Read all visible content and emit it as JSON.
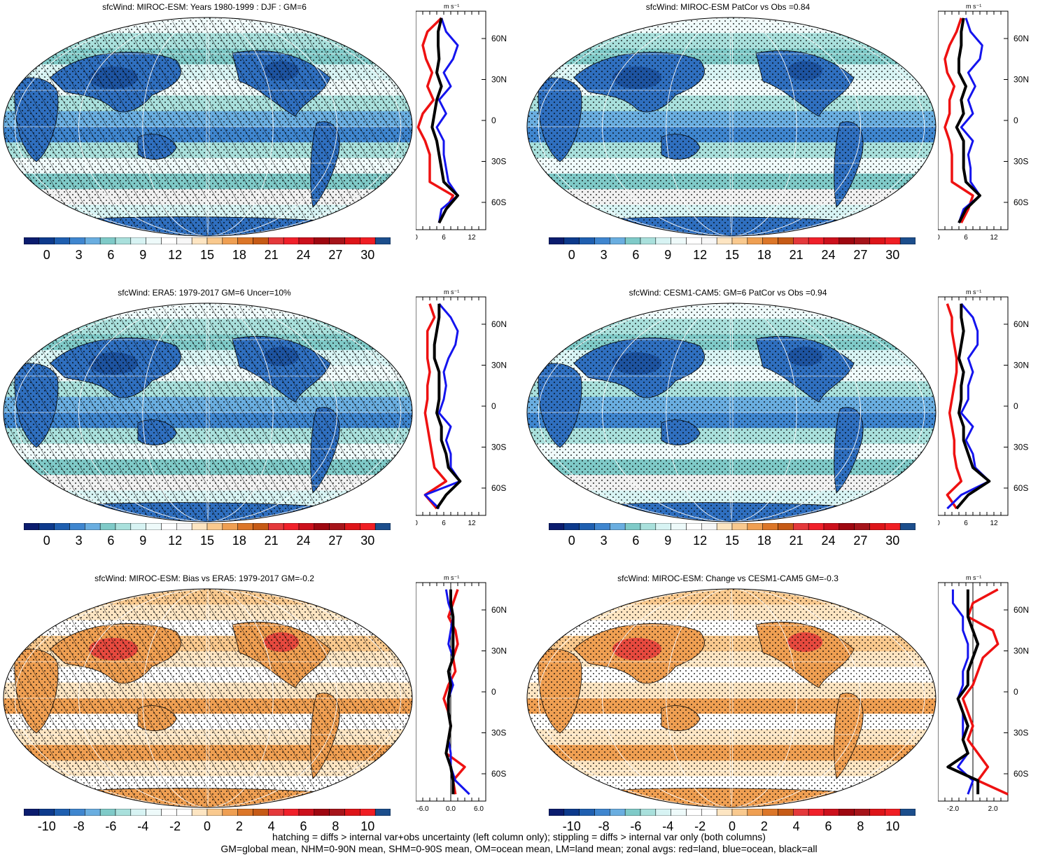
{
  "colors": {
    "abs_scale": [
      "#0b1c6e",
      "#0d3a8c",
      "#1f5fb0",
      "#3f86cf",
      "#6aaee0",
      "#7fcac8",
      "#a9e0dc",
      "#d7f3f3",
      "#eefafa",
      "#ffffff",
      "#f7f7f7",
      "#fde5c2",
      "#f9c98e",
      "#ef9f52",
      "#dc7628",
      "#c65a16",
      "#e4393b",
      "#f0202a",
      "#cc101c",
      "#9e0710",
      "#a6141a",
      "#dd1419",
      "#f01e24",
      "#1c4e8c"
    ],
    "diff_scale": [
      "#0b1c6e",
      "#0d3a8c",
      "#1f5fb0",
      "#3f86cf",
      "#6aaee0",
      "#7fcac8",
      "#a9e0dc",
      "#d7f3f3",
      "#eefafa",
      "#ffffff",
      "#ffffff",
      "#fde5c2",
      "#f9c98e",
      "#ef9f52",
      "#dc7628",
      "#c65a16",
      "#e4393b",
      "#f0202a",
      "#cc101c",
      "#9e0710",
      "#a6141a",
      "#dd1419",
      "#f01e24",
      "#1c4e8c"
    ],
    "land_line": "#ee1111",
    "ocean_line": "#1414ee",
    "all_line": "#000000"
  },
  "panels": [
    {
      "title": "sfcWind: MIROC-ESM: Years 1980-1999 : DJF : GM=6",
      "kind": "abs",
      "hatching": true,
      "cbar_labels": [
        "0",
        "3",
        "6",
        "9",
        "12",
        "15",
        "18",
        "21",
        "24",
        "27",
        "30"
      ],
      "zonal": {
        "xlim": [
          0,
          15
        ],
        "xticks": [
          "0",
          "6",
          "12"
        ],
        "xtick_values": [
          0,
          6,
          12
        ]
      }
    },
    {
      "title": "sfcWind: MIROC-ESM PatCor vs Obs =0.84",
      "kind": "abs",
      "hatching": false,
      "cbar_labels": [
        "0",
        "3",
        "6",
        "9",
        "12",
        "15",
        "18",
        "21",
        "24",
        "27",
        "30"
      ],
      "zonal": {
        "xlim": [
          0,
          15
        ],
        "xticks": [
          "0",
          "6",
          "12"
        ],
        "xtick_values": [
          0,
          6,
          12
        ]
      }
    },
    {
      "title": "sfcWind: ERA5: 1979-2017 GM=6 Uncer=10%",
      "kind": "abs",
      "hatching": true,
      "cbar_labels": [
        "0",
        "3",
        "6",
        "9",
        "12",
        "15",
        "18",
        "21",
        "24",
        "27",
        "30"
      ],
      "zonal": {
        "xlim": [
          0,
          15
        ],
        "xticks": [
          "0",
          "6",
          "12"
        ],
        "xtick_values": [
          0,
          6,
          12
        ]
      }
    },
    {
      "title": "sfcWind: CESM1-CAM5: GM=6 PatCor vs Obs =0.94",
      "kind": "abs",
      "hatching": false,
      "cbar_labels": [
        "0",
        "3",
        "6",
        "9",
        "12",
        "15",
        "18",
        "21",
        "24",
        "27",
        "30"
      ],
      "zonal": {
        "xlim": [
          0,
          15
        ],
        "xticks": [
          "0",
          "6",
          "12"
        ],
        "xtick_values": [
          0,
          6,
          12
        ]
      }
    },
    {
      "title": "sfcWind: MIROC-ESM: Bias vs ERA5: 1979-2017 GM=-0.2",
      "kind": "diff",
      "hatching": true,
      "cbar_labels": [
        "-10",
        "-8",
        "-6",
        "-4",
        "-2",
        "0",
        "2",
        "4",
        "6",
        "8",
        "10"
      ],
      "zonal": {
        "xlim": [
          -7.5,
          7.5
        ],
        "xticks": [
          "-6.0",
          "0.0",
          "6.0"
        ],
        "xtick_values": [
          -6,
          0,
          6
        ]
      }
    },
    {
      "title": "sfcWind: MIROC-ESM: Change vs CESM1-CAM5 GM=-0.3",
      "kind": "diff",
      "hatching": false,
      "cbar_labels": [
        "-10",
        "-8",
        "-6",
        "-4",
        "-2",
        "0",
        "2",
        "4",
        "6",
        "8",
        "10"
      ],
      "zonal": {
        "xlim": [
          -3.5,
          3.5
        ],
        "xticks": [
          "-2.0",
          "2.0"
        ],
        "xtick_values": [
          -2,
          2
        ]
      }
    }
  ],
  "zonal_unit": "m s⁻¹",
  "lat_labels": [
    "60N",
    "30N",
    "0",
    "30S",
    "60S"
  ],
  "chart_data": [
    {
      "type": "line",
      "title": "sfcWind: MIROC-ESM: Years 1980-1999 : DJF : GM=6",
      "ylabel": "latitude",
      "ylim": [
        -80,
        80
      ],
      "x": [
        75,
        65,
        55,
        45,
        35,
        25,
        15,
        5,
        -5,
        -15,
        -25,
        -35,
        -45,
        -55,
        -65,
        -75
      ],
      "series": [
        {
          "values": [
            5.5,
            2.5,
            1.5,
            2.2,
            3.5,
            2.5,
            3.8,
            1.5,
            0.5,
            2,
            3,
            3,
            3,
            8,
            6.5,
            5
          ]
        },
        {
          "values": [
            5.5,
            6.5,
            9.0,
            8.0,
            6.0,
            7.5,
            5.0,
            6.5,
            4.5,
            6.0,
            6.0,
            6.5,
            7,
            9,
            5.5,
            5
          ]
        },
        {
          "values": [
            5.5,
            4.8,
            4.8,
            5.0,
            4.5,
            5.5,
            4.5,
            4.0,
            3.5,
            4.5,
            5.0,
            5.5,
            6,
            9,
            6.5,
            5
          ]
        }
      ]
    },
    {
      "type": "line",
      "title": "sfcWind: MIROC-ESM PatCor vs Obs =0.84",
      "ylabel": "latitude",
      "ylim": [
        -80,
        80
      ],
      "x": [
        75,
        65,
        55,
        45,
        35,
        25,
        15,
        5,
        -5,
        -15,
        -25,
        -35,
        -45,
        -55,
        -65,
        -75
      ],
      "series": [
        {
          "values": [
            5,
            4,
            2.5,
            1.5,
            2.0,
            3.5,
            2.5,
            2.5,
            1.5,
            2.5,
            3,
            3,
            3,
            7.5,
            6.5,
            5
          ]
        },
        {
          "values": [
            6,
            7,
            9.5,
            9,
            6.5,
            8,
            6.5,
            7.5,
            5,
            7.5,
            6.5,
            7,
            7,
            9,
            5.5,
            4.5
          ]
        },
        {
          "values": [
            5.5,
            5,
            5,
            4.5,
            4.5,
            6,
            5,
            5.5,
            4,
            5.5,
            5.5,
            5.5,
            6,
            9,
            6,
            4.5
          ]
        }
      ]
    },
    {
      "type": "line",
      "title": "sfcWind: ERA5: 1979-2017 GM=6 Uncer=10%",
      "ylabel": "latitude",
      "ylim": [
        -80,
        80
      ],
      "x": [
        75,
        65,
        55,
        45,
        35,
        25,
        15,
        5,
        -5,
        -15,
        -25,
        -35,
        -45,
        -55,
        -65,
        -75
      ],
      "series": [
        {
          "values": [
            3,
            4,
            2.5,
            2.5,
            2.5,
            3,
            2.5,
            2.5,
            2.0,
            2.5,
            3,
            3.5,
            4,
            6.5,
            2,
            4.5
          ]
        },
        {
          "values": [
            5,
            7.5,
            9,
            8.5,
            7,
            6,
            6.5,
            6,
            5,
            7.5,
            6.5,
            7.5,
            7.5,
            9.5,
            2,
            5
          ]
        },
        {
          "values": [
            5,
            5,
            4.5,
            4,
            4,
            5,
            5,
            5,
            4.5,
            5.5,
            5.5,
            6.5,
            7,
            9.5,
            6.5,
            4.5
          ]
        }
      ]
    },
    {
      "type": "line",
      "title": "sfcWind: CESM1-CAM5: GM=6 PatCor vs Obs =0.94",
      "ylabel": "latitude",
      "ylim": [
        -80,
        80
      ],
      "x": [
        75,
        65,
        55,
        45,
        35,
        25,
        15,
        5,
        -5,
        -15,
        -25,
        -35,
        -45,
        -55,
        -65,
        -75
      ],
      "series": [
        {
          "values": [
            2,
            3,
            3,
            3.5,
            4,
            4,
            3.5,
            3,
            2.5,
            3,
            3.5,
            3.5,
            4,
            5,
            2,
            4
          ]
        },
        {
          "values": [
            5,
            7.5,
            8.5,
            8.5,
            6.5,
            7.5,
            6.5,
            6.5,
            5,
            7.5,
            6,
            7.5,
            8,
            11,
            5,
            2
          ]
        },
        {
          "values": [
            5,
            5,
            5.5,
            5,
            4.5,
            5.5,
            5,
            5,
            4.5,
            5.5,
            5.5,
            6.5,
            7.5,
            11,
            6.5,
            4
          ]
        }
      ]
    },
    {
      "type": "line",
      "title": "sfcWind: MIROC-ESM: Bias vs ERA5: 1979-2017 GM=-0.2",
      "ylabel": "latitude",
      "ylim": [
        -80,
        80
      ],
      "x": [
        75,
        65,
        55,
        45,
        35,
        25,
        15,
        5,
        -5,
        -15,
        -25,
        -35,
        -45,
        -55,
        -65,
        -75
      ],
      "series": [
        {
          "values": [
            1.5,
            0.5,
            -0.5,
            1.0,
            1.5,
            0.5,
            1.0,
            -0.5,
            -1.5,
            -0.5,
            0,
            -0.5,
            -1,
            3,
            0.5,
            1
          ]
        },
        {
          "values": [
            -1,
            -0.5,
            0.5,
            0,
            -0.5,
            0.5,
            -0.5,
            0.5,
            -0.5,
            -0.5,
            0,
            -0.5,
            0,
            0,
            1,
            4
          ]
        },
        {
          "values": [
            0,
            0,
            0.5,
            0.5,
            0.5,
            0.5,
            -0.5,
            0,
            -0.5,
            -0.5,
            0,
            -0.5,
            -1,
            0,
            0.5,
            0.5
          ]
        }
      ]
    },
    {
      "type": "line",
      "title": "sfcWind: MIROC-ESM: Change vs CESM1-CAM5 GM=-0.3",
      "ylabel": "latitude",
      "ylim": [
        -80,
        80
      ],
      "x": [
        75,
        65,
        55,
        45,
        35,
        25,
        15,
        5,
        -5,
        -15,
        -25,
        -35,
        -45,
        -55,
        -65,
        -75
      ],
      "series": [
        {
          "values": [
            2.5,
            0,
            -0.5,
            2,
            2.5,
            1,
            0.5,
            0,
            -1,
            -0.5,
            0,
            -0.5,
            0.5,
            1.5,
            0.5,
            3.5
          ]
        },
        {
          "values": [
            -2,
            -2,
            -1,
            -1,
            -0.5,
            -0.5,
            -1,
            -1,
            -1.5,
            -1,
            -1,
            -1,
            -0.5,
            -1.5,
            0,
            -0.5
          ]
        },
        {
          "values": [
            -0.5,
            -0.5,
            -0.5,
            0,
            0.5,
            0,
            -0.5,
            -0.5,
            -1.5,
            -1,
            -0.5,
            -1,
            -0.5,
            -2.5,
            0.5,
            0.5
          ]
        }
      ]
    }
  ],
  "footer": {
    "line1": "hatching = diffs > internal var+obs uncertainty (left column only); stippling = diffs > internal var only (both columns)",
    "line2": "GM=global mean, NHM=0-90N mean, SHM=0-90S mean, OM=ocean mean, LM=land mean; zonal avgs: red=land, blue=ocean, black=all"
  }
}
